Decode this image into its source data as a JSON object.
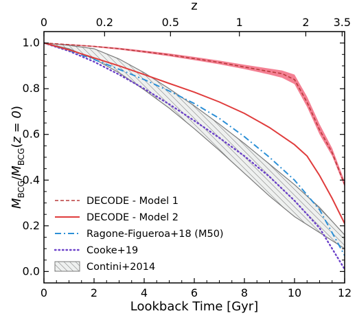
{
  "chart_data": {
    "type": "line",
    "xlabel": "Lookback Time [Gyr]",
    "ylabel_main": "M",
    "ylabel_sub1": "BCG",
    "ylabel_sub2": "BCG",
    "ylabel_arg": "z = 0",
    "top_xlabel": "z",
    "xlim": [
      0,
      12
    ],
    "ylim": [
      -0.05,
      1.05
    ],
    "x_ticks": [
      0,
      2,
      4,
      6,
      8,
      10,
      12
    ],
    "y_ticks": [
      0.0,
      0.2,
      0.4,
      0.6,
      0.8,
      1.0
    ],
    "top_ticks": [
      {
        "label": "0",
        "t": 0
      },
      {
        "label": "0.2",
        "t": 2.42
      },
      {
        "label": "0.5",
        "t": 5.05
      },
      {
        "label": "1",
        "t": 7.8
      },
      {
        "label": "2",
        "t": 10.45
      },
      {
        "label": "3.5",
        "t": 11.9
      }
    ],
    "legend_position": "lower-left",
    "colors": {
      "model1": "#d84c4c",
      "model1_band": "#f26a80",
      "model2": "#e03c3c",
      "ragone": "#2b8fd6",
      "cooke": "#6a3fc9",
      "contini": "#7a7a7a"
    },
    "series": [
      {
        "name": "DECODE - Model 1",
        "style": "dashed",
        "x": [
          0,
          1,
          2,
          3,
          4,
          5,
          6,
          7,
          8,
          9,
          9.5,
          10,
          10.5,
          11,
          11.5,
          12
        ],
        "y": [
          1.0,
          0.993,
          0.985,
          0.975,
          0.962,
          0.948,
          0.932,
          0.915,
          0.895,
          0.875,
          0.866,
          0.84,
          0.74,
          0.62,
          0.52,
          0.38
        ],
        "band_upper": [
          1.0,
          0.995,
          0.988,
          0.979,
          0.967,
          0.954,
          0.939,
          0.923,
          0.905,
          0.888,
          0.88,
          0.862,
          0.765,
          0.645,
          0.54,
          0.395
        ],
        "band_lower": [
          1.0,
          0.991,
          0.982,
          0.971,
          0.957,
          0.942,
          0.925,
          0.907,
          0.886,
          0.862,
          0.848,
          0.82,
          0.72,
          0.6,
          0.505,
          0.37
        ]
      },
      {
        "name": "DECODE - Model 2",
        "style": "solid",
        "x": [
          0,
          1,
          2,
          3,
          4,
          5,
          6,
          7,
          8,
          9,
          10,
          10.5,
          11,
          11.5,
          12
        ],
        "y": [
          1.0,
          0.97,
          0.935,
          0.9,
          0.862,
          0.823,
          0.785,
          0.742,
          0.692,
          0.63,
          0.555,
          0.505,
          0.42,
          0.32,
          0.21
        ]
      },
      {
        "name": "Ragone-Figueroa+18 (M50)",
        "style": "dashdot",
        "x": [
          0,
          1,
          2,
          3,
          4,
          5,
          6,
          7,
          8,
          9,
          10,
          11,
          12
        ],
        "y": [
          1.0,
          0.968,
          0.928,
          0.885,
          0.84,
          0.79,
          0.735,
          0.67,
          0.59,
          0.5,
          0.4,
          0.27,
          0.07
        ]
      },
      {
        "name": "Cooke+19",
        "style": "dotted",
        "x": [
          0,
          1,
          2,
          3,
          4,
          5,
          6,
          7,
          8,
          9,
          10,
          11,
          12
        ],
        "y": [
          1.0,
          0.965,
          0.918,
          0.862,
          0.8,
          0.732,
          0.66,
          0.585,
          0.505,
          0.415,
          0.31,
          0.19,
          0.01
        ]
      },
      {
        "name": "Contini+2014",
        "style": "hatched-band",
        "x": [
          0,
          1,
          2,
          3,
          4,
          5,
          6,
          7,
          8,
          9,
          10,
          11,
          12
        ],
        "upper": [
          1.0,
          0.99,
          0.975,
          0.93,
          0.87,
          0.8,
          0.725,
          0.645,
          0.56,
          0.47,
          0.38,
          0.28,
          0.16
        ],
        "lower": [
          1.0,
          0.975,
          0.93,
          0.87,
          0.795,
          0.715,
          0.625,
          0.53,
          0.43,
          0.33,
          0.24,
          0.17,
          0.1
        ]
      }
    ]
  }
}
